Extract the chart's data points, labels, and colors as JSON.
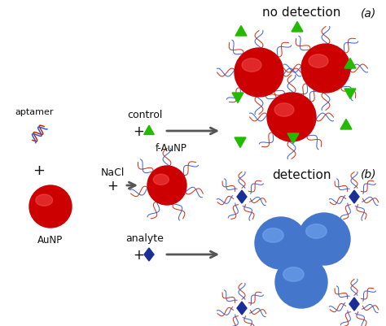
{
  "bg_color": "#ffffff",
  "red_color": "#cc0000",
  "red_highlight": "#ff6666",
  "blue_sphere_color": "#4477cc",
  "blue_sphere_highlight": "#88bbff",
  "blue_dark": "#1a2e99",
  "green_color": "#22bb00",
  "dark_arrow": "#555555",
  "dna_color1": "#cc2200",
  "dna_color2": "#3355cc",
  "text_color": "#111111",
  "label_a": "(a)",
  "label_b": "(b)",
  "label_aptamer": "aptamer",
  "label_aunp": "AuNP",
  "label_nacl": "NaCl",
  "label_faunp": "f-AuNP",
  "label_control": "control",
  "label_analyte": "analyte",
  "label_nodetection": "no detection",
  "label_detection": "detection",
  "fig_w": 4.74,
  "fig_h": 4.02,
  "dpi": 100
}
